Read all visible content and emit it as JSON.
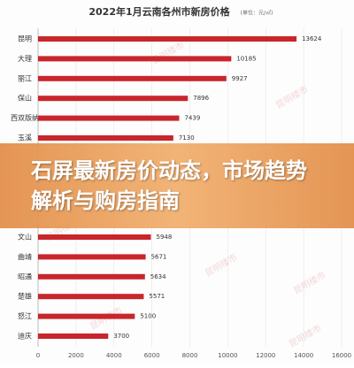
{
  "chart_data": {
    "type": "bar",
    "orientation": "horizontal",
    "title": "2022年1月云南各州市新房价格",
    "subtitle": "(单位：元/㎡)",
    "categories": [
      "昆明",
      "大理",
      "丽江",
      "保山",
      "西双版纳",
      "玉溪",
      "文山",
      "曲靖",
      "昭通",
      "楚雄",
      "怒江",
      "迪庆"
    ],
    "values": [
      13624,
      10185,
      9927,
      7896,
      7439,
      7130,
      5948,
      5671,
      5634,
      5571,
      5100,
      3700
    ],
    "color": "#c8262b",
    "xlim": [
      0,
      16000
    ],
    "xticks": [
      0,
      2000,
      4000,
      6000,
      8000,
      10000,
      12000,
      14000,
      16000
    ],
    "grid": true
  },
  "watermark": "昆明楼市",
  "headline": "石屏最新房价动态，市场趋势解析与购房指南"
}
